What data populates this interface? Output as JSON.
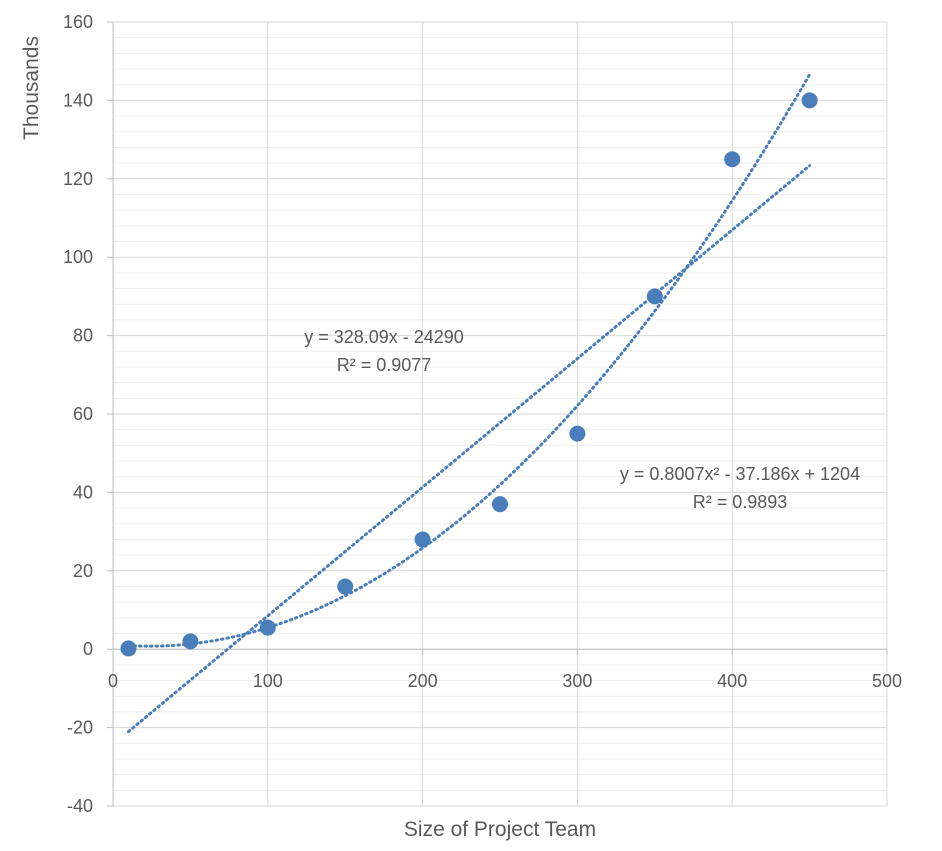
{
  "chart_data": {
    "type": "scatter",
    "title": "",
    "xlabel": "Size of Project Team",
    "ylabel": "Thousands",
    "xlim": [
      0,
      500
    ],
    "ylim": [
      -40,
      160
    ],
    "xticks": [
      "0",
      "100",
      "200",
      "300",
      "400",
      "500"
    ],
    "yticks": [
      "-40",
      "-20",
      "0",
      "20",
      "40",
      "60",
      "80",
      "100",
      "120",
      "140",
      "160"
    ],
    "y_scale_thousands": true,
    "grid": true,
    "minor_grid": true,
    "legend": "none",
    "marker_color": "#4a7ebb",
    "trendline_color": "#4a7ebb",
    "series": [
      {
        "points": [
          {
            "x": 10,
            "y": 0.2
          },
          {
            "x": 50,
            "y": 2
          },
          {
            "x": 100,
            "y": 5.5
          },
          {
            "x": 150,
            "y": 16
          },
          {
            "x": 200,
            "y": 28
          },
          {
            "x": 250,
            "y": 37
          },
          {
            "x": 300,
            "y": 55
          },
          {
            "x": 350,
            "y": 90
          },
          {
            "x": 400,
            "y": 125
          },
          {
            "x": 450,
            "y": 140
          }
        ]
      }
    ],
    "trendlines": [
      {
        "type": "linear",
        "coefficients": [
          328.09,
          -24290
        ],
        "x_range": [
          10,
          450
        ],
        "equation": "y = 328.09x - 24290",
        "r2": "R² = 0.9077"
      },
      {
        "type": "polynomial",
        "coefficients": [
          0.8007,
          -37.186,
          1204
        ],
        "x_range": [
          10,
          450
        ],
        "equation": "y = 0.8007x² - 37.186x + 1204",
        "r2": "R² = 0.9893"
      }
    ]
  }
}
